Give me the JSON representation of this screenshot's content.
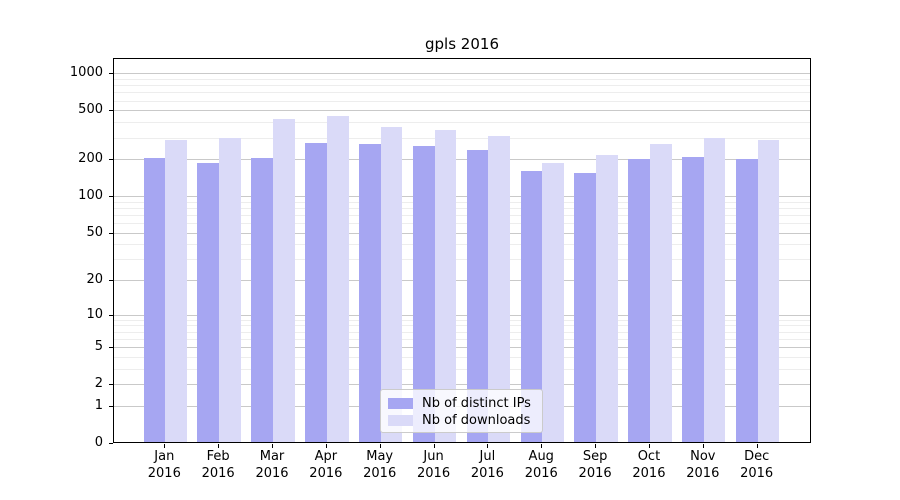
{
  "page": {
    "background": "#ffffff"
  },
  "chart_data": {
    "type": "bar",
    "title": "gpls 2016",
    "xlabel": "",
    "ylabel": "",
    "yscale": "log1p",
    "grid": {
      "major_color": "#c9c9c9",
      "minor_color": "#ededed",
      "grid_on": true
    },
    "axis_color": "#000000",
    "yticks": [
      0,
      1,
      2,
      5,
      10,
      20,
      50,
      100,
      200,
      500,
      1000
    ],
    "minor_yticks": [
      3,
      4,
      6,
      7,
      8,
      9,
      30,
      40,
      60,
      70,
      80,
      90,
      300,
      400,
      600,
      700,
      800,
      900
    ],
    "ylim": [
      0,
      1340
    ],
    "categories": [
      "Jan 2016",
      "Feb 2016",
      "Mar 2016",
      "Apr 2016",
      "May 2016",
      "Jun 2016",
      "Jul 2016",
      "Aug 2016",
      "Sep 2016",
      "Oct 2016",
      "Nov 2016",
      "Dec 2016"
    ],
    "series": [
      {
        "name": "Nb of distinct IPs",
        "color": "#a6a6f2",
        "values": [
          200,
          184,
          201,
          266,
          263,
          252,
          233,
          157,
          153,
          196,
          205,
          196
        ]
      },
      {
        "name": "Nb of downloads",
        "color": "#dadaf8",
        "values": [
          284,
          292,
          420,
          440,
          358,
          340,
          302,
          184,
          214,
          262,
          293,
          280
        ]
      }
    ],
    "legend": {
      "position": "bottom-center"
    }
  }
}
